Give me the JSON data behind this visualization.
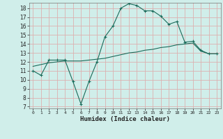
{
  "xlabel": "Humidex (Indice chaleur)",
  "bg_color": "#d0eeea",
  "grid_color": "#ddb0b0",
  "line_color": "#1a6b5a",
  "xlim": [
    -0.5,
    23.5
  ],
  "ylim": [
    6.8,
    18.6
  ],
  "yticks": [
    7,
    8,
    9,
    10,
    11,
    12,
    13,
    14,
    15,
    16,
    17,
    18
  ],
  "xticks": [
    0,
    1,
    2,
    3,
    4,
    5,
    6,
    7,
    8,
    9,
    10,
    11,
    12,
    13,
    14,
    15,
    16,
    17,
    18,
    19,
    20,
    21,
    22,
    23
  ],
  "line1_x": [
    0,
    1,
    2,
    3,
    4,
    5,
    6,
    7,
    8,
    9,
    10,
    11,
    12,
    13,
    14,
    15,
    16,
    17,
    18,
    19,
    20,
    21,
    22,
    23
  ],
  "line1_y": [
    11.0,
    10.5,
    12.2,
    12.2,
    12.2,
    9.8,
    7.3,
    9.8,
    12.0,
    14.8,
    16.0,
    18.0,
    18.5,
    18.3,
    17.7,
    17.7,
    17.1,
    16.2,
    16.5,
    14.2,
    14.3,
    13.3,
    12.9,
    12.9
  ],
  "line2_x": [
    0,
    1,
    2,
    3,
    4,
    5,
    6,
    7,
    8,
    9,
    10,
    11,
    12,
    13,
    14,
    15,
    16,
    17,
    18,
    19,
    20,
    21,
    22,
    23
  ],
  "line2_y": [
    11.5,
    11.7,
    11.9,
    12.0,
    12.1,
    12.1,
    12.1,
    12.2,
    12.3,
    12.4,
    12.6,
    12.8,
    13.0,
    13.1,
    13.3,
    13.4,
    13.6,
    13.7,
    13.9,
    14.0,
    14.1,
    13.2,
    12.9,
    12.9
  ]
}
